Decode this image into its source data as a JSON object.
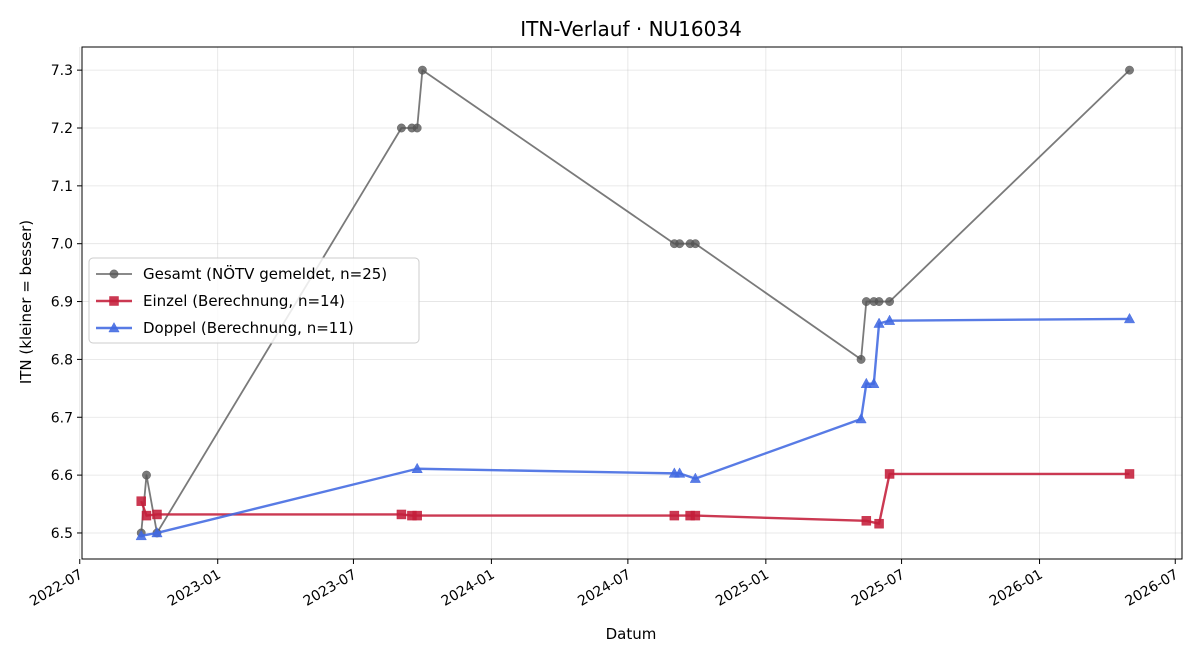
{
  "chart_data": {
    "type": "line",
    "title": "ITN-Verlauf · NU16034",
    "xlabel": "Datum",
    "ylabel": "ITN  (kleiner = besser)",
    "xlim": [
      "2022-07-04",
      "2026-07-10"
    ],
    "ylim": [
      6.455,
      7.34
    ],
    "x_ticks": [
      "2022-07-01",
      "2023-01-01",
      "2023-07-01",
      "2024-01-01",
      "2024-07-01",
      "2025-01-01",
      "2025-07-01",
      "2026-01-01",
      "2026-07-01"
    ],
    "x_tick_labels": [
      "2022-07",
      "2023-01",
      "2023-07",
      "2024-01",
      "2024-07",
      "2025-01",
      "2025-07",
      "2026-01",
      "2026-07"
    ],
    "y_ticks": [
      6.5,
      6.6,
      6.7,
      6.8,
      6.9,
      7.0,
      7.1,
      7.2,
      7.3
    ],
    "y_tick_labels": [
      "6.5",
      "6.6",
      "6.7",
      "6.8",
      "6.9",
      "7.0",
      "7.1",
      "7.2",
      "7.3"
    ],
    "grid": true,
    "legend_position": "center-left",
    "series": [
      {
        "name": "Gesamt (NÖTV gemeldet, n=25)",
        "color": "#555555",
        "marker": "circle",
        "points": [
          {
            "x": "2022-09-21",
            "y": 6.5
          },
          {
            "x": "2022-09-28",
            "y": 6.6
          },
          {
            "x": "2022-10-12",
            "y": 6.5
          },
          {
            "x": "2023-09-03",
            "y": 7.2
          },
          {
            "x": "2023-09-17",
            "y": 7.2
          },
          {
            "x": "2023-09-24",
            "y": 7.2
          },
          {
            "x": "2023-10-01",
            "y": 7.3
          },
          {
            "x": "2024-09-01",
            "y": 7.0
          },
          {
            "x": "2024-09-08",
            "y": 7.0
          },
          {
            "x": "2024-09-22",
            "y": 7.0
          },
          {
            "x": "2024-09-29",
            "y": 7.0
          },
          {
            "x": "2025-05-08",
            "y": 6.8
          },
          {
            "x": "2025-05-15",
            "y": 6.9
          },
          {
            "x": "2025-05-25",
            "y": 6.9
          },
          {
            "x": "2025-06-01",
            "y": 6.9
          },
          {
            "x": "2025-06-15",
            "y": 6.9
          },
          {
            "x": "2026-05-01",
            "y": 7.3
          }
        ]
      },
      {
        "name": "Einzel (Berechnung, n=14)",
        "color": "#c41e3a",
        "marker": "square",
        "points": [
          {
            "x": "2022-09-21",
            "y": 6.555
          },
          {
            "x": "2022-09-28",
            "y": 6.53
          },
          {
            "x": "2022-10-12",
            "y": 6.532
          },
          {
            "x": "2023-09-03",
            "y": 6.532
          },
          {
            "x": "2023-09-17",
            "y": 6.53
          },
          {
            "x": "2023-09-24",
            "y": 6.53
          },
          {
            "x": "2024-09-01",
            "y": 6.53
          },
          {
            "x": "2024-09-22",
            "y": 6.53
          },
          {
            "x": "2024-09-29",
            "y": 6.53
          },
          {
            "x": "2025-05-15",
            "y": 6.521
          },
          {
            "x": "2025-06-01",
            "y": 6.516
          },
          {
            "x": "2025-06-15",
            "y": 6.602
          },
          {
            "x": "2026-05-01",
            "y": 6.602
          }
        ]
      },
      {
        "name": "Doppel (Berechnung, n=11)",
        "color": "#4169e1",
        "marker": "triangle",
        "points": [
          {
            "x": "2022-09-21",
            "y": 6.495
          },
          {
            "x": "2022-10-12",
            "y": 6.5
          },
          {
            "x": "2023-09-24",
            "y": 6.611
          },
          {
            "x": "2024-09-01",
            "y": 6.603
          },
          {
            "x": "2024-09-08",
            "y": 6.603
          },
          {
            "x": "2024-09-29",
            "y": 6.594
          },
          {
            "x": "2025-05-08",
            "y": 6.697
          },
          {
            "x": "2025-05-15",
            "y": 6.758
          },
          {
            "x": "2025-05-25",
            "y": 6.758
          },
          {
            "x": "2025-06-01",
            "y": 6.862
          },
          {
            "x": "2025-06-15",
            "y": 6.867
          },
          {
            "x": "2026-05-01",
            "y": 6.87
          }
        ]
      }
    ]
  }
}
